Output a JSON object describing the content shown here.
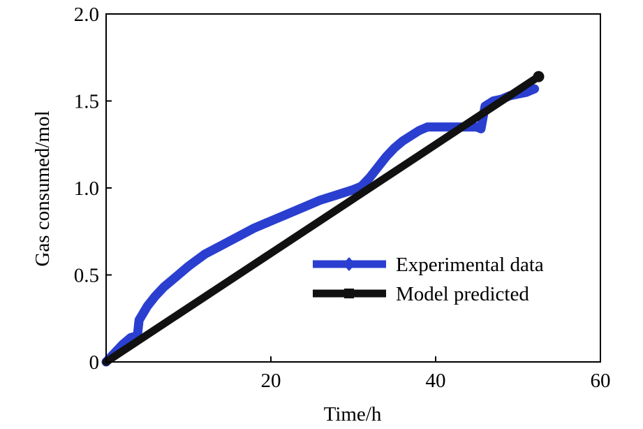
{
  "chart_data": {
    "type": "line",
    "title": "",
    "xlabel": "Time/h",
    "ylabel": "Gas consumed/mol",
    "xlim": [
      0,
      60
    ],
    "ylim": [
      0,
      2.0
    ],
    "xticks": [
      20,
      40,
      60
    ],
    "xtick_labels": [
      "20",
      "40",
      "60"
    ],
    "yticks": [
      0,
      0.5,
      1.0,
      1.5,
      2.0
    ],
    "ytick_labels": [
      "0",
      "0.5",
      "1.0",
      "1.5",
      "2.0"
    ],
    "legend_position": "center-right",
    "series": [
      {
        "name": "Experimental data",
        "color": "#2a3fd0",
        "x": [
          0,
          1,
          2,
          3,
          3.8,
          4,
          5,
          6,
          7,
          8,
          10,
          12,
          14,
          16,
          18,
          20,
          22,
          24,
          26,
          28,
          30,
          31,
          32,
          33,
          34,
          35,
          36,
          37,
          38,
          39,
          40,
          41,
          42,
          43,
          44,
          45,
          45.5,
          46,
          47,
          48,
          49,
          50,
          51,
          52
        ],
        "y": [
          0.0,
          0.05,
          0.1,
          0.14,
          0.15,
          0.24,
          0.32,
          0.38,
          0.43,
          0.47,
          0.55,
          0.62,
          0.67,
          0.72,
          0.77,
          0.81,
          0.85,
          0.89,
          0.93,
          0.96,
          0.99,
          1.01,
          1.06,
          1.12,
          1.18,
          1.23,
          1.27,
          1.3,
          1.33,
          1.35,
          1.35,
          1.35,
          1.35,
          1.35,
          1.35,
          1.35,
          1.34,
          1.47,
          1.5,
          1.51,
          1.53,
          1.54,
          1.55,
          1.57
        ]
      },
      {
        "name": "Model predicted",
        "color": "#111111",
        "x": [
          0,
          52.5
        ],
        "y": [
          0.0,
          1.64
        ]
      }
    ]
  }
}
